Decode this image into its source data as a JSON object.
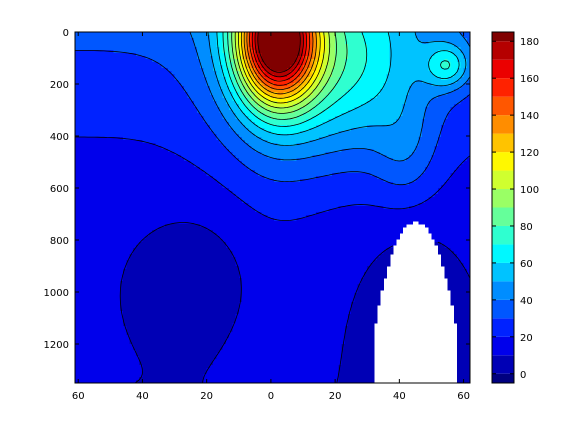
{
  "chart_data": {
    "type": "heatmap",
    "subtype": "filled-contour",
    "title": "",
    "xlabel": "",
    "ylabel": "",
    "x_ticks": [
      "60",
      "40",
      "20",
      "0",
      "20",
      "40",
      "60"
    ],
    "x_tick_values": [
      -60,
      -40,
      -20,
      0,
      20,
      40,
      60
    ],
    "xlim": [
      -61,
      62
    ],
    "y_ticks": [
      "0",
      "200",
      "400",
      "600",
      "800",
      "1000",
      "1200"
    ],
    "y_tick_values": [
      0,
      200,
      400,
      600,
      800,
      1000,
      1200
    ],
    "ylim": [
      0,
      1350
    ],
    "y_reversed": true,
    "colorbar": {
      "ticks": [
        "0",
        "20",
        "40",
        "60",
        "80",
        "100",
        "120",
        "140",
        "160",
        "180"
      ],
      "tick_values": [
        0,
        20,
        40,
        60,
        80,
        100,
        120,
        140,
        160,
        180
      ],
      "range": [
        -5,
        185
      ],
      "colormap": "jet",
      "levels": [
        0,
        10,
        20,
        30,
        40,
        50,
        60,
        70,
        80,
        90,
        100,
        110,
        120,
        130,
        140,
        150,
        160,
        170,
        180
      ]
    },
    "peak": {
      "x": 2,
      "y": 30,
      "value": 185
    },
    "secondary_max": {
      "x": 55,
      "y": 130,
      "value": 72
    },
    "blank_region": {
      "x_range": [
        32,
        58
      ],
      "y_top": 730,
      "note": "no data"
    },
    "field_profile": {
      "x": [
        -60,
        -50,
        -40,
        -30,
        -20,
        -10,
        -5,
        0,
        5,
        10,
        20,
        30,
        40,
        50,
        60
      ],
      "value_at_depth_0": [
        32,
        34,
        38,
        48,
        75,
        135,
        165,
        185,
        170,
        145,
        95,
        62,
        58,
        62,
        60
      ],
      "value_at_depth_400": [
        22,
        25,
        30,
        42,
        55,
        75,
        80,
        82,
        80,
        75,
        60,
        48,
        40,
        42,
        40
      ],
      "value_at_depth_1200": [
        12,
        12,
        12,
        14,
        15,
        18,
        18,
        18,
        16,
        14,
        10,
        8,
        null,
        null,
        8
      ]
    }
  }
}
